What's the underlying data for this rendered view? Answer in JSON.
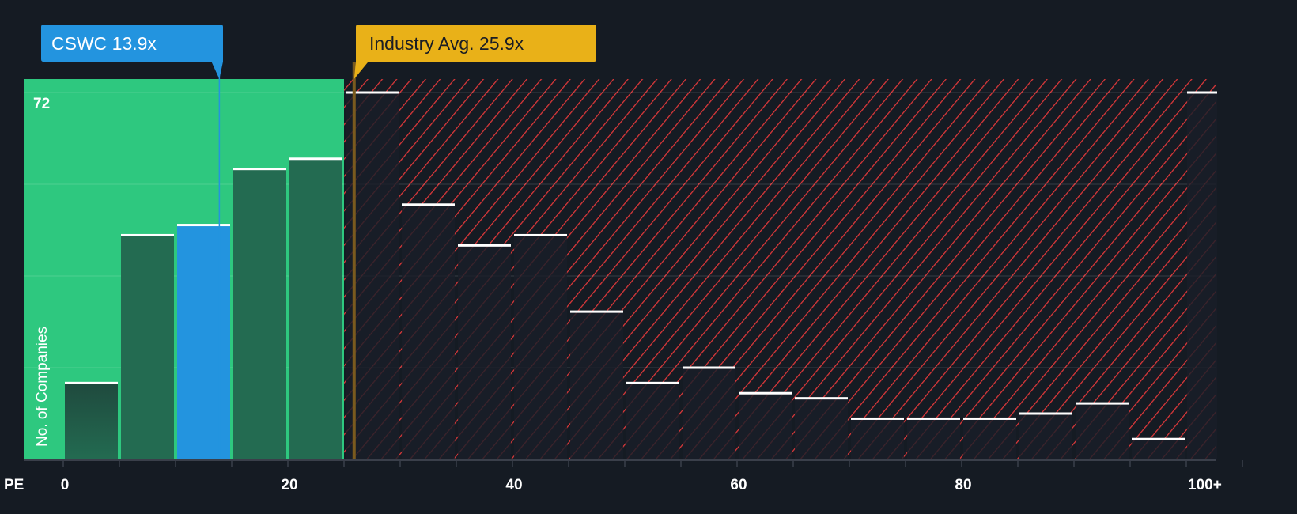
{
  "chart_data": {
    "type": "bar",
    "title": "",
    "xlabel": "PE",
    "ylabel": "No. of Companies",
    "bin_width": 5,
    "bins": [
      "0-5",
      "5-10",
      "10-15",
      "15-20",
      "20-25",
      "25-30",
      "30-35",
      "35-40",
      "40-45",
      "45-50",
      "50-55",
      "55-60",
      "60-65",
      "65-70",
      "70-75",
      "75-80",
      "80-85",
      "85-90",
      "90-95",
      "95-100",
      "100+"
    ],
    "values": [
      15,
      44,
      46,
      57,
      59,
      72,
      50,
      42,
      44,
      29,
      15,
      18,
      13,
      12,
      8,
      8,
      8,
      9,
      11,
      4,
      72
    ],
    "highlight_bin": "10-15",
    "xticks": [
      "0",
      "20",
      "40",
      "60",
      "80",
      "100+"
    ],
    "xtick_values": [
      0,
      20,
      40,
      60,
      80,
      100
    ],
    "ymax_label": "72",
    "ylim": [
      0,
      72
    ],
    "grid": true,
    "fair_range_max": 25,
    "markers": [
      {
        "label": "CSWC 13.9x",
        "value": 13.9,
        "color": "#2394df"
      },
      {
        "label": "Industry Avg. 25.9x",
        "value": 25.9,
        "color": "#e9b118"
      }
    ]
  },
  "colors": {
    "background": "#151b23",
    "good_zone": "#2ec87f",
    "good_bar": "#236b51",
    "highlight_bar": "#2394df",
    "hatch": "#e0383a"
  }
}
